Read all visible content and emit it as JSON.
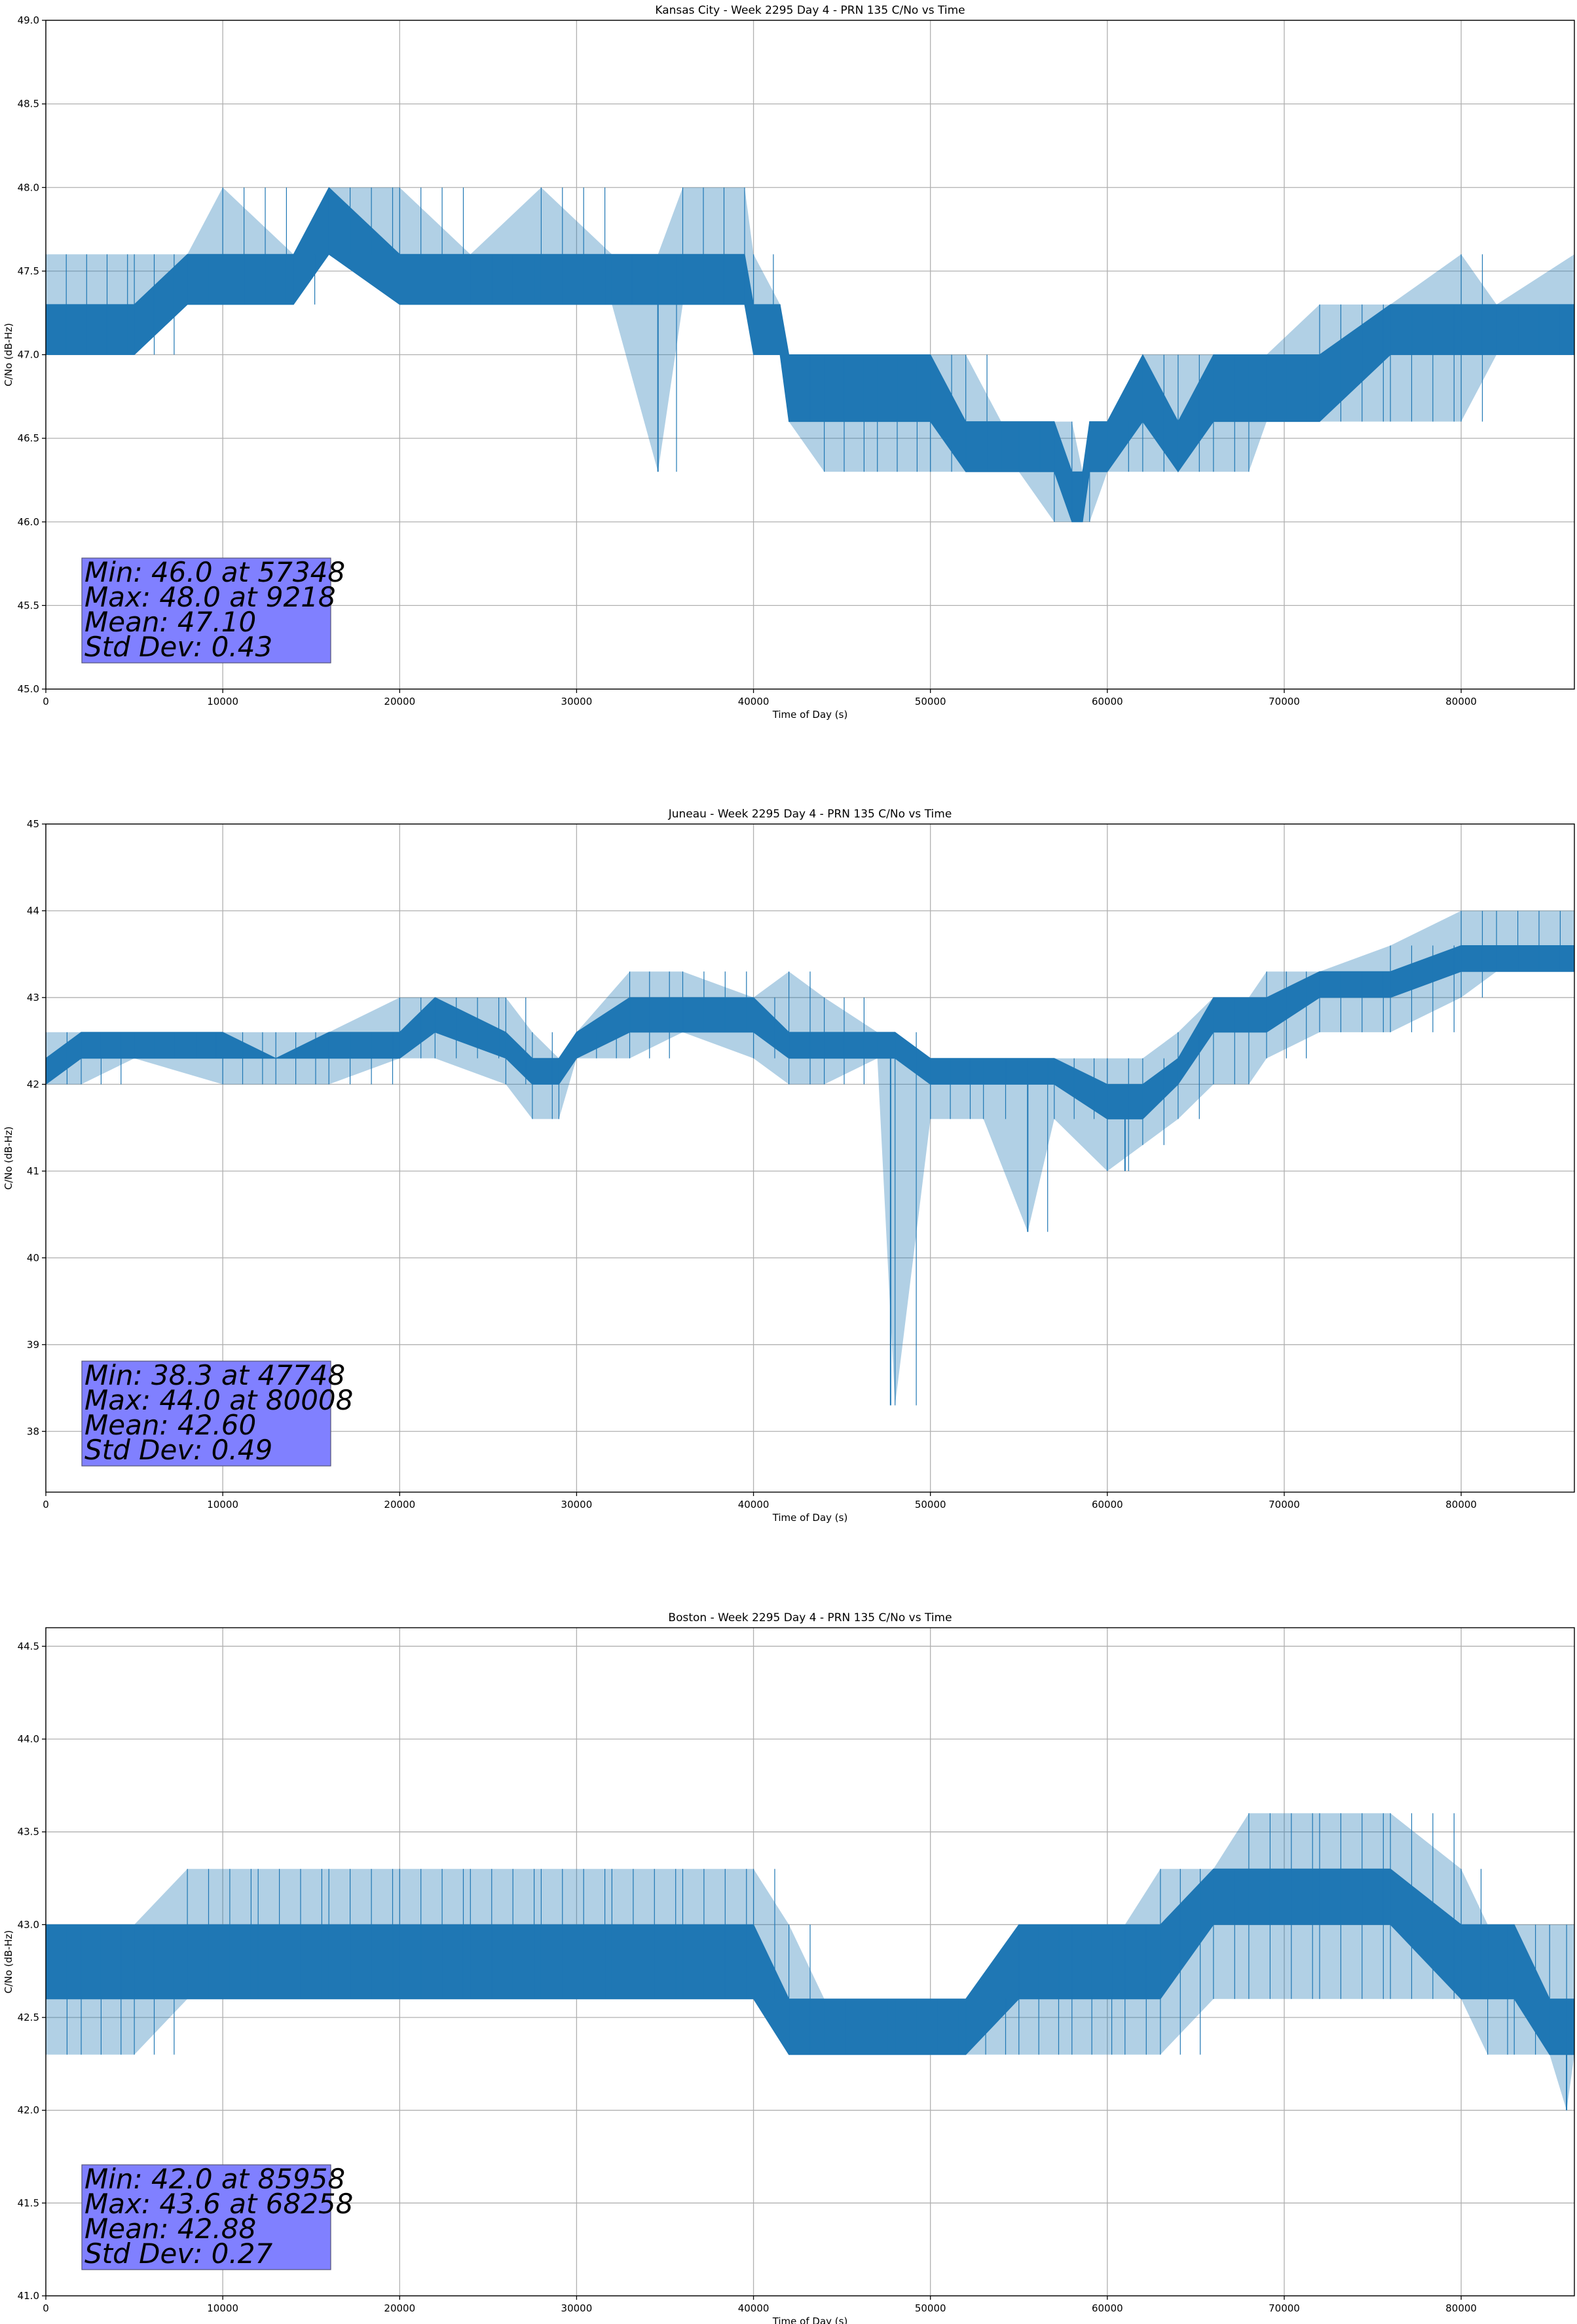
{
  "chart_data": [
    {
      "type": "line",
      "title": "Kansas City - Week 2295 Day 4 - PRN 135 C/No vs Time",
      "xlabel": "Time of Day (s)",
      "ylabel": "C/No (dB-Hz)",
      "xlim": [
        0,
        86400
      ],
      "ylim": [
        45.0,
        49.0
      ],
      "xticks": [
        0,
        10000,
        20000,
        30000,
        40000,
        50000,
        60000,
        70000,
        80000
      ],
      "xtick_labels": [
        "0",
        "10000",
        "20000",
        "30000",
        "40000",
        "50000",
        "60000",
        "70000",
        "80000"
      ],
      "yticks": [
        45.0,
        45.5,
        46.0,
        46.5,
        47.0,
        47.5,
        48.0,
        48.5,
        49.0
      ],
      "ytick_labels": [
        "45.0",
        "45.5",
        "46.0",
        "46.5",
        "47.0",
        "47.5",
        "48.0",
        "48.5",
        "49.0"
      ],
      "grid": true,
      "color": "#1f77b4",
      "series": [
        {
          "name": "C/No",
          "x": [
            0,
            5000,
            8000,
            10000,
            14000,
            16000,
            20000,
            24000,
            28000,
            32000,
            34600,
            36000,
            39500,
            40000,
            41500,
            42000,
            44000,
            47000,
            50000,
            52000,
            54000,
            55000,
            57000,
            58000,
            58600,
            59000,
            60000,
            62000,
            64000,
            66000,
            68000,
            69000,
            72000,
            76000,
            80000,
            82000,
            86400
          ],
          "min": [
            47.0,
            47.0,
            47.3,
            47.3,
            47.3,
            47.6,
            47.6,
            47.3,
            47.3,
            47.3,
            46.3,
            47.3,
            47.3,
            47.0,
            47.0,
            46.6,
            46.3,
            46.3,
            46.3,
            46.3,
            46.3,
            46.3,
            46.0,
            46.0,
            46.0,
            46.0,
            46.3,
            46.3,
            46.3,
            46.3,
            46.3,
            46.6,
            46.6,
            46.6,
            46.6,
            47.0,
            47.0
          ],
          "max": [
            47.6,
            47.6,
            47.6,
            48.0,
            47.6,
            48.0,
            48.0,
            47.6,
            48.0,
            47.6,
            47.6,
            48.0,
            48.0,
            47.6,
            47.3,
            47.0,
            47.0,
            47.0,
            47.0,
            47.0,
            46.6,
            46.6,
            46.6,
            46.6,
            46.3,
            46.6,
            46.6,
            47.0,
            47.0,
            47.0,
            47.0,
            47.0,
            47.3,
            47.3,
            47.6,
            47.3,
            47.6
          ],
          "band_low": [
            47.0,
            47.0,
            47.3,
            47.3,
            47.3,
            47.6,
            47.3,
            47.3,
            47.3,
            47.3,
            47.3,
            47.3,
            47.3,
            47.0,
            47.0,
            46.6,
            46.6,
            46.6,
            46.6,
            46.3,
            46.3,
            46.3,
            46.3,
            46.0,
            46.0,
            46.3,
            46.3,
            46.6,
            46.3,
            46.6,
            46.6,
            46.6,
            46.6,
            47.0,
            47.0,
            47.0,
            47.0
          ],
          "band_high": [
            47.3,
            47.3,
            47.6,
            47.6,
            47.6,
            48.0,
            47.6,
            47.6,
            47.6,
            47.6,
            47.6,
            47.6,
            47.6,
            47.3,
            47.3,
            47.0,
            47.0,
            47.0,
            47.0,
            46.6,
            46.6,
            46.6,
            46.6,
            46.3,
            46.3,
            46.6,
            46.6,
            47.0,
            46.6,
            47.0,
            47.0,
            47.0,
            47.0,
            47.3,
            47.3,
            47.3,
            47.3
          ],
          "spikes": [
            {
              "x": 34600,
              "y": 46.3
            }
          ]
        }
      ],
      "stats": {
        "min_line": "Min: 46.0 at 57348",
        "max_line": "Max: 48.0 at 9218",
        "mean_line": "Mean: 47.10",
        "std_line": "Std Dev: 0.43"
      }
    },
    {
      "type": "line",
      "title": "Juneau - Week 2295 Day 4 - PRN 135 C/No vs Time",
      "xlabel": "Time of Day (s)",
      "ylabel": "C/No (dB-Hz)",
      "xlim": [
        0,
        86400
      ],
      "ylim": [
        37.3,
        45.0
      ],
      "xticks": [
        0,
        10000,
        20000,
        30000,
        40000,
        50000,
        60000,
        70000,
        80000
      ],
      "xtick_labels": [
        "0",
        "10000",
        "20000",
        "30000",
        "40000",
        "50000",
        "60000",
        "70000",
        "80000"
      ],
      "yticks": [
        38,
        39,
        40,
        41,
        42,
        43,
        44,
        45
      ],
      "ytick_labels": [
        "38",
        "39",
        "40",
        "41",
        "42",
        "43",
        "44",
        "45"
      ],
      "grid": true,
      "color": "#1f77b4",
      "series": [
        {
          "name": "C/No",
          "x": [
            0,
            2000,
            5000,
            10000,
            13000,
            16000,
            20000,
            22000,
            26000,
            27500,
            29000,
            30000,
            33000,
            36000,
            40000,
            42000,
            44000,
            47000,
            48000,
            50000,
            53000,
            55500,
            57000,
            60000,
            62000,
            64000,
            66000,
            68000,
            69000,
            72000,
            76000,
            80000,
            82000,
            86400
          ],
          "min": [
            42.0,
            42.0,
            42.3,
            42.0,
            42.0,
            42.0,
            42.3,
            42.3,
            42.0,
            41.6,
            41.6,
            42.3,
            42.3,
            42.6,
            42.3,
            42.0,
            42.0,
            42.3,
            38.3,
            41.6,
            41.6,
            40.3,
            41.6,
            41.0,
            41.3,
            41.6,
            42.0,
            42.0,
            42.3,
            42.6,
            42.6,
            43.0,
            43.3,
            43.3
          ],
          "max": [
            42.6,
            42.6,
            42.6,
            42.6,
            42.6,
            42.6,
            43.0,
            43.0,
            43.0,
            42.6,
            42.3,
            42.6,
            43.3,
            43.3,
            43.0,
            43.3,
            43.0,
            42.6,
            42.6,
            42.3,
            42.3,
            42.3,
            42.3,
            42.3,
            42.3,
            42.6,
            43.0,
            43.0,
            43.3,
            43.3,
            43.6,
            44.0,
            44.0,
            44.0
          ],
          "band_low": [
            42.0,
            42.3,
            42.3,
            42.3,
            42.3,
            42.3,
            42.3,
            42.6,
            42.3,
            42.0,
            42.0,
            42.3,
            42.6,
            42.6,
            42.6,
            42.3,
            42.3,
            42.3,
            42.3,
            42.0,
            42.0,
            42.0,
            42.0,
            41.6,
            41.6,
            42.0,
            42.6,
            42.6,
            42.6,
            43.0,
            43.0,
            43.3,
            43.3,
            43.3
          ],
          "band_high": [
            42.3,
            42.6,
            42.6,
            42.6,
            42.3,
            42.6,
            42.6,
            43.0,
            42.6,
            42.3,
            42.3,
            42.6,
            43.0,
            43.0,
            43.0,
            42.6,
            42.6,
            42.6,
            42.6,
            42.3,
            42.3,
            42.3,
            42.3,
            42.0,
            42.0,
            42.3,
            43.0,
            43.0,
            43.0,
            43.3,
            43.3,
            43.6,
            43.6,
            43.6
          ],
          "spikes": [
            {
              "x": 47748,
              "y": 38.3
            },
            {
              "x": 55500,
              "y": 40.3
            },
            {
              "x": 61000,
              "y": 41.0
            }
          ]
        }
      ],
      "stats": {
        "min_line": "Min: 38.3 at 47748",
        "max_line": "Max: 44.0 at 80008",
        "mean_line": "Mean: 42.60",
        "std_line": "Std Dev: 0.49"
      }
    },
    {
      "type": "line",
      "title": "Boston - Week 2295 Day 4 - PRN 135 C/No vs Time",
      "xlabel": "Time of Day (s)",
      "ylabel": "C/No (dB-Hz)",
      "xlim": [
        0,
        86400
      ],
      "ylim": [
        41.0,
        44.6
      ],
      "xticks": [
        0,
        10000,
        20000,
        30000,
        40000,
        50000,
        60000,
        70000,
        80000
      ],
      "xtick_labels": [
        "0",
        "10000",
        "20000",
        "30000",
        "40000",
        "50000",
        "60000",
        "70000",
        "80000"
      ],
      "yticks": [
        41.0,
        41.5,
        42.0,
        42.5,
        43.0,
        43.5,
        44.0,
        44.5
      ],
      "ytick_labels": [
        "41.0",
        "41.5",
        "42.0",
        "42.5",
        "43.0",
        "43.5",
        "44.0",
        "44.5"
      ],
      "grid": true,
      "color": "#1f77b4",
      "series": [
        {
          "name": "C/No",
          "x": [
            0,
            2000,
            5000,
            8000,
            12000,
            16000,
            20000,
            24000,
            28000,
            32000,
            36000,
            40000,
            42000,
            44000,
            48000,
            52000,
            55000,
            58000,
            61000,
            63000,
            66000,
            68000,
            72000,
            76000,
            80000,
            81500,
            83000,
            85000,
            85958,
            86400
          ],
          "min": [
            42.3,
            42.3,
            42.3,
            42.6,
            42.6,
            42.6,
            42.6,
            42.6,
            42.6,
            42.6,
            42.6,
            42.6,
            42.3,
            42.3,
            42.3,
            42.3,
            42.3,
            42.3,
            42.3,
            42.3,
            42.6,
            42.6,
            42.6,
            42.6,
            42.6,
            42.3,
            42.3,
            42.3,
            42.0,
            42.3
          ],
          "max": [
            43.0,
            43.0,
            43.0,
            43.3,
            43.3,
            43.3,
            43.3,
            43.3,
            43.3,
            43.3,
            43.3,
            43.3,
            43.0,
            42.6,
            42.6,
            42.6,
            43.0,
            43.0,
            43.0,
            43.3,
            43.3,
            43.6,
            43.6,
            43.6,
            43.3,
            43.0,
            43.0,
            43.0,
            43.0,
            43.0
          ],
          "band_low": [
            42.6,
            42.6,
            42.6,
            42.6,
            42.6,
            42.6,
            42.6,
            42.6,
            42.6,
            42.6,
            42.6,
            42.6,
            42.3,
            42.3,
            42.3,
            42.3,
            42.6,
            42.6,
            42.6,
            42.6,
            43.0,
            43.0,
            43.0,
            43.0,
            42.6,
            42.6,
            42.6,
            42.3,
            42.3,
            42.3
          ],
          "band_high": [
            43.0,
            43.0,
            43.0,
            43.0,
            43.0,
            43.0,
            43.0,
            43.0,
            43.0,
            43.0,
            43.0,
            43.0,
            42.6,
            42.6,
            42.6,
            42.6,
            43.0,
            43.0,
            43.0,
            43.0,
            43.3,
            43.3,
            43.3,
            43.3,
            43.0,
            43.0,
            43.0,
            42.6,
            42.6,
            42.6
          ],
          "spikes": [
            {
              "x": 85958,
              "y": 42.0
            }
          ]
        }
      ],
      "stats": {
        "min_line": "Min: 42.0 at 85958",
        "max_line": "Max: 43.6 at 68258",
        "mean_line": "Mean: 42.88",
        "std_line": "Std Dev: 0.27"
      }
    }
  ]
}
